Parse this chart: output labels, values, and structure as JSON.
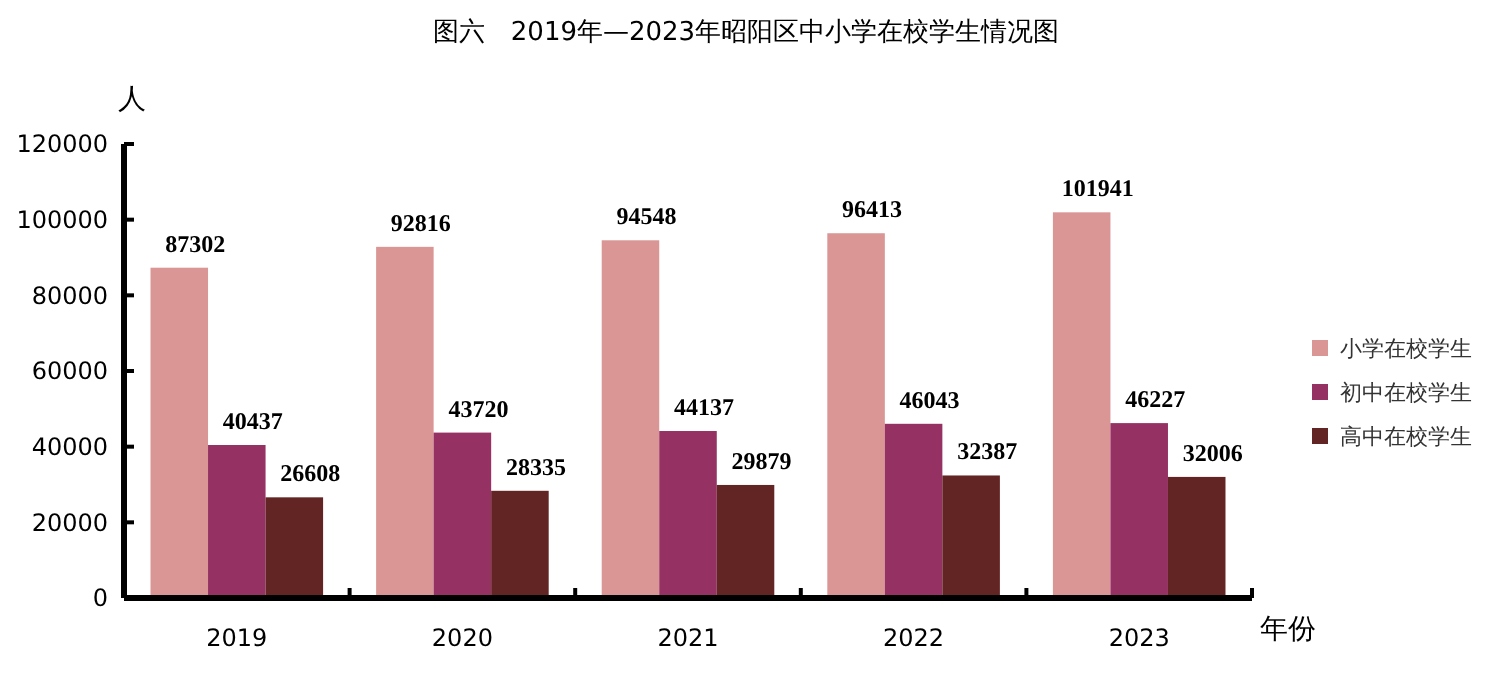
{
  "chart_data": {
    "type": "bar",
    "title": "图六　2019年—2023年昭阳区中小学在校学生情况图",
    "ylabel": "人",
    "xlabel": "年份",
    "categories": [
      "2019",
      "2020",
      "2021",
      "2022",
      "2023"
    ],
    "series": [
      {
        "name": "小学在校学生",
        "color": "#d99694",
        "values": [
          87302,
          92816,
          94548,
          96413,
          101941
        ]
      },
      {
        "name": "初中在校学生",
        "color": "#953163",
        "values": [
          40437,
          43720,
          44137,
          46043,
          46227
        ]
      },
      {
        "name": "高中在校学生",
        "color": "#632523",
        "values": [
          26608,
          28335,
          29879,
          32387,
          32006
        ]
      }
    ],
    "ylim": [
      0,
      120000
    ],
    "yticks": [
      0,
      20000,
      40000,
      60000,
      80000,
      100000,
      120000
    ],
    "grid": false,
    "legend": "right",
    "data_labels": true
  }
}
